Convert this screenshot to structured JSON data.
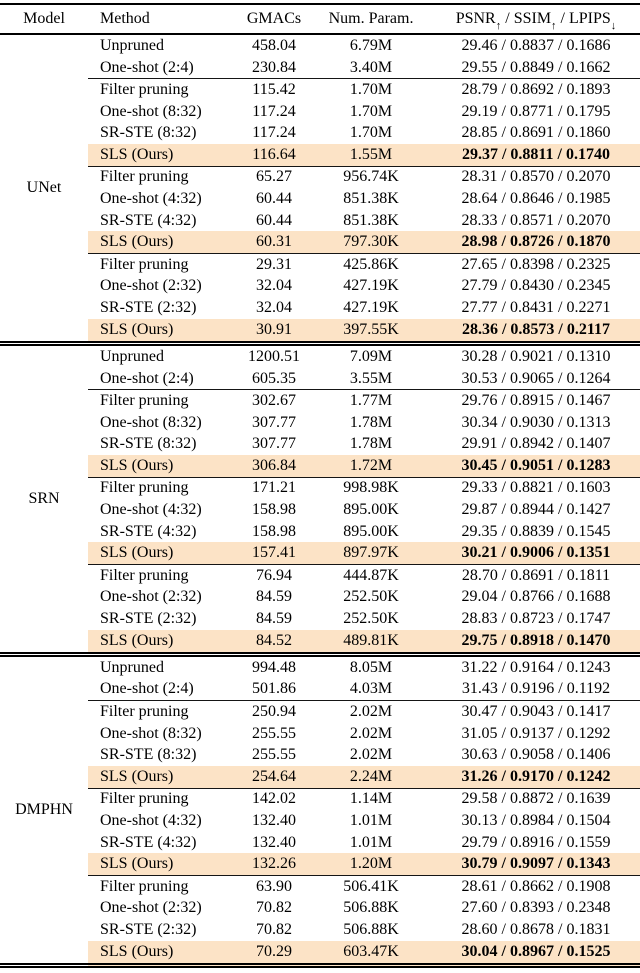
{
  "table": {
    "highlight_color": "#fce3c6",
    "text_color": "#000000",
    "headers": {
      "model": "Model",
      "method": "Method",
      "gmacs": "GMACs",
      "num_param": "Num. Param.",
      "metrics_parts": [
        {
          "name": "PSNR",
          "arrow": "up"
        },
        {
          "name": "SSIM",
          "arrow": "up"
        },
        {
          "name": "LPIPS",
          "arrow": "down"
        }
      ],
      "metrics_separator": " / "
    },
    "groups": [
      {
        "model": "UNet",
        "blocks": [
          {
            "rows": [
              {
                "method": "Unpruned",
                "gmacs": "458.04",
                "params": "6.79M",
                "psnr": "29.46",
                "ssim": "0.8837",
                "lpips": "0.1686",
                "highlight": false,
                "bold": false
              },
              {
                "method": "One-shot (2:4)",
                "gmacs": "230.84",
                "params": "3.40M",
                "psnr": "29.55",
                "ssim": "0.8849",
                "lpips": "0.1662",
                "highlight": false,
                "bold": false
              }
            ]
          },
          {
            "rows": [
              {
                "method": "Filter pruning",
                "gmacs": "115.42",
                "params": "1.70M",
                "psnr": "28.79",
                "ssim": "0.8692",
                "lpips": "0.1893",
                "highlight": false,
                "bold": false
              },
              {
                "method": "One-shot (8:32)",
                "gmacs": "117.24",
                "params": "1.70M",
                "psnr": "29.19",
                "ssim": "0.8771",
                "lpips": "0.1795",
                "highlight": false,
                "bold": false
              },
              {
                "method": "SR-STE (8:32)",
                "gmacs": "117.24",
                "params": "1.70M",
                "psnr": "28.85",
                "ssim": "0.8691",
                "lpips": "0.1860",
                "highlight": false,
                "bold": false
              },
              {
                "method": "SLS (Ours)",
                "gmacs": "116.64",
                "params": "1.55M",
                "psnr": "29.37",
                "ssim": "0.8811",
                "lpips": "0.1740",
                "highlight": true,
                "bold": true
              }
            ]
          },
          {
            "rows": [
              {
                "method": "Filter pruning",
                "gmacs": "65.27",
                "params": "956.74K",
                "psnr": "28.31",
                "ssim": "0.8570",
                "lpips": "0.2070",
                "highlight": false,
                "bold": false
              },
              {
                "method": "One-shot (4:32)",
                "gmacs": "60.44",
                "params": "851.38K",
                "psnr": "28.64",
                "ssim": "0.8646",
                "lpips": "0.1985",
                "highlight": false,
                "bold": false
              },
              {
                "method": "SR-STE (4:32)",
                "gmacs": "60.44",
                "params": "851.38K",
                "psnr": "28.33",
                "ssim": "0.8571",
                "lpips": "0.2070",
                "highlight": false,
                "bold": false
              },
              {
                "method": "SLS (Ours)",
                "gmacs": "60.31",
                "params": "797.30K",
                "psnr": "28.98",
                "ssim": "0.8726",
                "lpips": "0.1870",
                "highlight": true,
                "bold": true
              }
            ]
          },
          {
            "rows": [
              {
                "method": "Filter pruning",
                "gmacs": "29.31",
                "params": "425.86K",
                "psnr": "27.65",
                "ssim": "0.8398",
                "lpips": "0.2325",
                "highlight": false,
                "bold": false
              },
              {
                "method": "One-shot (2:32)",
                "gmacs": "32.04",
                "params": "427.19K",
                "psnr": "27.79",
                "ssim": "0.8430",
                "lpips": "0.2345",
                "highlight": false,
                "bold": false
              },
              {
                "method": "SR-STE (2:32)",
                "gmacs": "32.04",
                "params": "427.19K",
                "psnr": "27.77",
                "ssim": "0.8431",
                "lpips": "0.2271",
                "highlight": false,
                "bold": false
              },
              {
                "method": "SLS (Ours)",
                "gmacs": "30.91",
                "params": "397.55K",
                "psnr": "28.36",
                "ssim": "0.8573",
                "lpips": "0.2117",
                "highlight": true,
                "bold": true
              }
            ]
          }
        ]
      },
      {
        "model": "SRN",
        "blocks": [
          {
            "rows": [
              {
                "method": "Unpruned",
                "gmacs": "1200.51",
                "params": "7.09M",
                "psnr": "30.28",
                "ssim": "0.9021",
                "lpips": "0.1310",
                "highlight": false,
                "bold": false
              },
              {
                "method": "One-shot (2:4)",
                "gmacs": "605.35",
                "params": "3.55M",
                "psnr": "30.53",
                "ssim": "0.9065",
                "lpips": "0.1264",
                "highlight": false,
                "bold": false
              }
            ]
          },
          {
            "rows": [
              {
                "method": "Filter pruning",
                "gmacs": "302.67",
                "params": "1.77M",
                "psnr": "29.76",
                "ssim": "0.8915",
                "lpips": "0.1467",
                "highlight": false,
                "bold": false
              },
              {
                "method": "One-shot (8:32)",
                "gmacs": "307.77",
                "params": "1.78M",
                "psnr": "30.34",
                "ssim": "0.9030",
                "lpips": "0.1313",
                "highlight": false,
                "bold": false
              },
              {
                "method": "SR-STE (8:32)",
                "gmacs": "307.77",
                "params": "1.78M",
                "psnr": "29.91",
                "ssim": "0.8942",
                "lpips": "0.1407",
                "highlight": false,
                "bold": false
              },
              {
                "method": "SLS (Ours)",
                "gmacs": "306.84",
                "params": "1.72M",
                "psnr": "30.45",
                "ssim": "0.9051",
                "lpips": "0.1283",
                "highlight": true,
                "bold": true
              }
            ]
          },
          {
            "rows": [
              {
                "method": "Filter pruning",
                "gmacs": "171.21",
                "params": "998.98K",
                "psnr": "29.33",
                "ssim": "0.8821",
                "lpips": "0.1603",
                "highlight": false,
                "bold": false
              },
              {
                "method": "One-shot (4:32)",
                "gmacs": "158.98",
                "params": "895.00K",
                "psnr": "29.87",
                "ssim": "0.8944",
                "lpips": "0.1427",
                "highlight": false,
                "bold": false
              },
              {
                "method": "SR-STE (4:32)",
                "gmacs": "158.98",
                "params": "895.00K",
                "psnr": "29.35",
                "ssim": "0.8839",
                "lpips": "0.1545",
                "highlight": false,
                "bold": false
              },
              {
                "method": "SLS (Ours)",
                "gmacs": "157.41",
                "params": "897.97K",
                "psnr": "30.21",
                "ssim": "0.9006",
                "lpips": "0.1351",
                "highlight": true,
                "bold": true
              }
            ]
          },
          {
            "rows": [
              {
                "method": "Filter pruning",
                "gmacs": "76.94",
                "params": "444.87K",
                "psnr": "28.70",
                "ssim": "0.8691",
                "lpips": "0.1811",
                "highlight": false,
                "bold": false
              },
              {
                "method": "One-shot (2:32)",
                "gmacs": "84.59",
                "params": "252.50K",
                "psnr": "29.04",
                "ssim": "0.8766",
                "lpips": "0.1688",
                "highlight": false,
                "bold": false
              },
              {
                "method": "SR-STE (2:32)",
                "gmacs": "84.59",
                "params": "252.50K",
                "psnr": "28.83",
                "ssim": "0.8723",
                "lpips": "0.1747",
                "highlight": false,
                "bold": false
              },
              {
                "method": "SLS (Ours)",
                "gmacs": "84.52",
                "params": "489.81K",
                "psnr": "29.75",
                "ssim": "0.8918",
                "lpips": "0.1470",
                "highlight": true,
                "bold": true
              }
            ]
          }
        ]
      },
      {
        "model": "DMPHN",
        "blocks": [
          {
            "rows": [
              {
                "method": "Unpruned",
                "gmacs": "994.48",
                "params": "8.05M",
                "psnr": "31.22",
                "ssim": "0.9164",
                "lpips": "0.1243",
                "highlight": false,
                "bold": false
              },
              {
                "method": "One-shot (2:4)",
                "gmacs": "501.86",
                "params": "4.03M",
                "psnr": "31.43",
                "ssim": "0.9196",
                "lpips": "0.1192",
                "highlight": false,
                "bold": false
              }
            ]
          },
          {
            "rows": [
              {
                "method": "Filter pruning",
                "gmacs": "250.94",
                "params": "2.02M",
                "psnr": "30.47",
                "ssim": "0.9043",
                "lpips": "0.1417",
                "highlight": false,
                "bold": false
              },
              {
                "method": "One-shot (8:32)",
                "gmacs": "255.55",
                "params": "2.02M",
                "psnr": "31.05",
                "ssim": "0.9137",
                "lpips": "0.1292",
                "highlight": false,
                "bold": false
              },
              {
                "method": "SR-STE (8:32)",
                "gmacs": "255.55",
                "params": "2.02M",
                "psnr": "30.63",
                "ssim": "0.9058",
                "lpips": "0.1406",
                "highlight": false,
                "bold": false
              },
              {
                "method": "SLS (Ours)",
                "gmacs": "254.64",
                "params": "2.24M",
                "psnr": "31.26",
                "ssim": "0.9170",
                "lpips": "0.1242",
                "highlight": true,
                "bold": true
              }
            ]
          },
          {
            "rows": [
              {
                "method": "Filter pruning",
                "gmacs": "142.02",
                "params": "1.14M",
                "psnr": "29.58",
                "ssim": "0.8872",
                "lpips": "0.1639",
                "highlight": false,
                "bold": false
              },
              {
                "method": "One-shot (4:32)",
                "gmacs": "132.40",
                "params": "1.01M",
                "psnr": "30.13",
                "ssim": "0.8984",
                "lpips": "0.1504",
                "highlight": false,
                "bold": false
              },
              {
                "method": "SR-STE (4:32)",
                "gmacs": "132.40",
                "params": "1.01M",
                "psnr": "29.79",
                "ssim": "0.8916",
                "lpips": "0.1559",
                "highlight": false,
                "bold": false
              },
              {
                "method": "SLS (Ours)",
                "gmacs": "132.26",
                "params": "1.20M",
                "psnr": "30.79",
                "ssim": "0.9097",
                "lpips": "0.1343",
                "highlight": true,
                "bold": true
              }
            ]
          },
          {
            "rows": [
              {
                "method": "Filter pruning",
                "gmacs": "63.90",
                "params": "506.41K",
                "psnr": "28.61",
                "ssim": "0.8662",
                "lpips": "0.1908",
                "highlight": false,
                "bold": false
              },
              {
                "method": "One-shot (2:32)",
                "gmacs": "70.82",
                "params": "506.88K",
                "psnr": "27.60",
                "ssim": "0.8393",
                "lpips": "0.2348",
                "highlight": false,
                "bold": false
              },
              {
                "method": "SR-STE (2:32)",
                "gmacs": "70.82",
                "params": "506.88K",
                "psnr": "28.60",
                "ssim": "0.8678",
                "lpips": "0.1831",
                "highlight": false,
                "bold": false
              },
              {
                "method": "SLS (Ours)",
                "gmacs": "70.29",
                "params": "603.47K",
                "psnr": "30.04",
                "ssim": "0.8967",
                "lpips": "0.1525",
                "highlight": true,
                "bold": true
              }
            ]
          }
        ]
      }
    ]
  }
}
